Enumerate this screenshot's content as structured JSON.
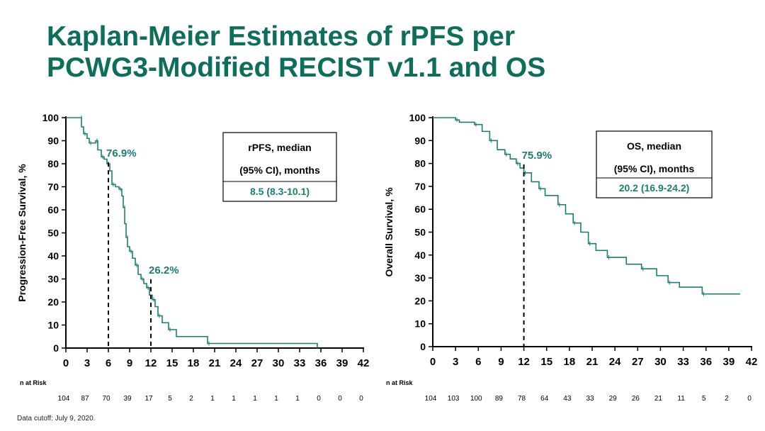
{
  "slide": {
    "title_line1": "Kaplan-Meier Estimates of rPFS per",
    "title_line2": "PCWG3-Modified RECIST v1.1 and OS",
    "footer": "Data cutoff: July 9, 2020."
  },
  "colors": {
    "accent": "#1a7f72",
    "title": "#0e6e5c",
    "axis": "#000000"
  },
  "chart_data": [
    {
      "type": "line",
      "name": "rPFS",
      "ylabel": "Progression-Free Survival, %",
      "xlabel": "",
      "xlim": [
        0,
        42
      ],
      "ylim": [
        0,
        100
      ],
      "xticks": [
        0,
        3,
        6,
        9,
        12,
        15,
        18,
        21,
        24,
        27,
        30,
        33,
        36,
        39,
        42
      ],
      "yticks": [
        0,
        10,
        20,
        30,
        40,
        50,
        60,
        70,
        80,
        90,
        100
      ],
      "series": [
        {
          "name": "rPFS",
          "x": [
            0,
            2,
            2.2,
            2.5,
            3,
            3.3,
            3.7,
            4.2,
            4.5,
            5,
            5.4,
            5.8,
            6.2,
            6.5,
            7,
            7.5,
            7.9,
            8.1,
            8.3,
            8.5,
            8.7,
            9,
            9.4,
            9.8,
            10.2,
            10.6,
            11,
            11.4,
            11.8,
            12.2,
            12.6,
            13,
            13.6,
            14.5,
            15.6,
            20,
            35.5
          ],
          "y": [
            100,
            100,
            96,
            93,
            91,
            89,
            89,
            90,
            86,
            83,
            82,
            80,
            76.9,
            71,
            70,
            69,
            66,
            61,
            54,
            48,
            44,
            42,
            39,
            36,
            32,
            30,
            28,
            26.2,
            23,
            21,
            18,
            14,
            11,
            8,
            5,
            2,
            0
          ]
        }
      ],
      "annotations": [
        {
          "text": "76.9%",
          "x": 6,
          "y": 76.9
        },
        {
          "text": "26.2%",
          "x": 12,
          "y": 26.2
        }
      ],
      "legend_box": {
        "line1": "rPFS, median",
        "line2": "(95% CI), months",
        "value": "8.5 (8.3-10.1)"
      },
      "n_at_risk": {
        "label": "n at Risk",
        "times": [
          0,
          3,
          6,
          9,
          12,
          15,
          18,
          21,
          24,
          27,
          30,
          33,
          36,
          39,
          42
        ],
        "counts": [
          "104",
          "87",
          "70",
          "39",
          "17",
          "5",
          "2",
          "1",
          "1",
          "1",
          "1",
          "1",
          "0",
          "0",
          "0"
        ]
      }
    },
    {
      "type": "line",
      "name": "OS",
      "ylabel": "Overall Survival, %",
      "xlabel": "",
      "xlim": [
        0,
        42
      ],
      "ylim": [
        0,
        100
      ],
      "xticks": [
        0,
        3,
        6,
        9,
        12,
        15,
        18,
        21,
        24,
        27,
        30,
        33,
        36,
        39,
        42
      ],
      "yticks": [
        0,
        10,
        20,
        30,
        40,
        50,
        60,
        70,
        80,
        90,
        100
      ],
      "series": [
        {
          "name": "OS",
          "x": [
            0,
            3,
            3.5,
            5.5,
            6.5,
            7.5,
            8.5,
            9.5,
            10.2,
            11,
            11.5,
            12,
            13,
            14,
            14.8,
            16.5,
            17.5,
            18.5,
            19.5,
            20.5,
            21.5,
            23,
            25.5,
            27.5,
            29.5,
            31,
            32.5,
            35.5,
            40.5
          ],
          "y": [
            100,
            99,
            98,
            97,
            94,
            90,
            86,
            84,
            82,
            80,
            78,
            75.9,
            72,
            69,
            66,
            62,
            58,
            54,
            50,
            45,
            42,
            39,
            36,
            34,
            31,
            28,
            26,
            23,
            23
          ]
        }
      ],
      "annotations": [
        {
          "text": "75.9%",
          "x": 12,
          "y": 75.9
        }
      ],
      "legend_box": {
        "line1": "OS, median",
        "line2": "(95% CI), months",
        "value": "20.2 (16.9-24.2)"
      },
      "n_at_risk": {
        "label": "n at Risk",
        "times": [
          0,
          3,
          6,
          9,
          12,
          15,
          18,
          21,
          24,
          27,
          30,
          33,
          36,
          39,
          42
        ],
        "counts": [
          "104",
          "103",
          "100",
          "89",
          "78",
          "64",
          "43",
          "33",
          "29",
          "26",
          "21",
          "11",
          "5",
          "2",
          "0"
        ]
      }
    }
  ]
}
